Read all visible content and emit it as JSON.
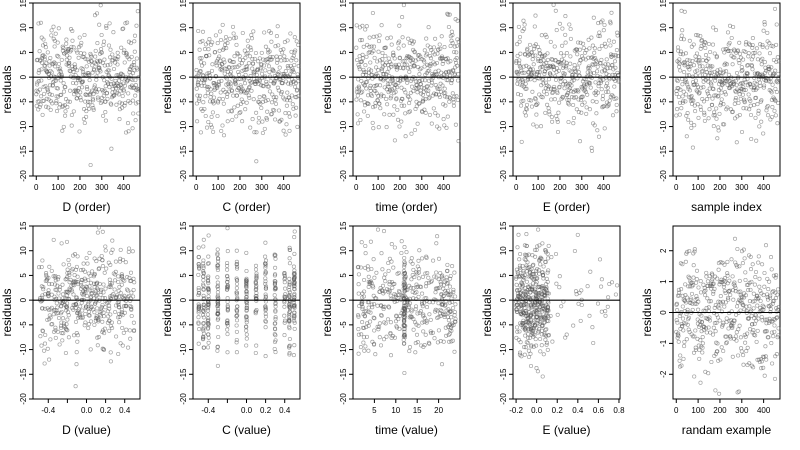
{
  "figure": {
    "type": "scatter-grid",
    "rows": 2,
    "cols": 5,
    "point_style": "open circle, translucent grey",
    "reference_line": 0,
    "colors": {
      "points": "#555555",
      "axes": "#000000",
      "background": "#ffffff"
    }
  },
  "chart_data": [
    {
      "type": "scatter",
      "xlabel": "D (order)",
      "ylabel": "residuals",
      "xlim": [
        -15,
        475
      ],
      "ylim": [
        -20,
        15
      ],
      "xticks": [
        0,
        100,
        200,
        300,
        400
      ],
      "yticks": [
        -20,
        -15,
        -10,
        -5,
        0,
        5,
        10,
        15
      ],
      "x_kind": "index",
      "n": 470,
      "y_sd": 5,
      "hline": 0,
      "points_note": "≈470 residuals, mean ≈ 0, spread mostly within ±12"
    },
    {
      "type": "scatter",
      "xlabel": "C (order)",
      "ylabel": "residuals",
      "xlim": [
        -15,
        475
      ],
      "ylim": [
        -20,
        15
      ],
      "xticks": [
        0,
        100,
        200,
        300,
        400
      ],
      "yticks": [
        -20,
        -15,
        -10,
        -5,
        0,
        5,
        10,
        15
      ],
      "x_kind": "index",
      "n": 470,
      "y_sd": 5,
      "hline": 0,
      "points_note": "≈470 residuals, mean ≈ 0, spread mostly within ±12"
    },
    {
      "type": "scatter",
      "xlabel": "time (order)",
      "ylabel": "residuals",
      "xlim": [
        -15,
        475
      ],
      "ylim": [
        -20,
        15
      ],
      "xticks": [
        0,
        100,
        200,
        300,
        400
      ],
      "yticks": [
        -20,
        -15,
        -10,
        -5,
        0,
        5,
        10,
        15
      ],
      "x_kind": "index",
      "n": 470,
      "y_sd": 5,
      "hline": 0,
      "points_note": "≈470 residuals, mean ≈ 0, spread mostly within ±12"
    },
    {
      "type": "scatter",
      "xlabel": "E (order)",
      "ylabel": "residuals",
      "xlim": [
        -15,
        475
      ],
      "ylim": [
        -20,
        15
      ],
      "xticks": [
        0,
        100,
        200,
        300,
        400
      ],
      "yticks": [
        -20,
        -15,
        -10,
        -5,
        0,
        5,
        10,
        15
      ],
      "x_kind": "index",
      "n": 470,
      "y_sd": 5,
      "hline": 0,
      "points_note": "≈470 residuals, mean ≈ 0, spread mostly within ±12"
    },
    {
      "type": "scatter",
      "xlabel": "sample index",
      "ylabel": "residuals",
      "xlim": [
        -15,
        475
      ],
      "ylim": [
        -20,
        15
      ],
      "xticks": [
        0,
        100,
        200,
        300,
        400
      ],
      "yticks": [
        -20,
        -15,
        -10,
        -5,
        0,
        5,
        10,
        15
      ],
      "x_kind": "index",
      "n": 470,
      "y_sd": 5,
      "hline": 0,
      "points_note": "≈470 residuals, mean ≈ 0, spread mostly within ±12"
    },
    {
      "type": "scatter",
      "xlabel": "D (value)",
      "ylabel": "residuals",
      "xlim": [
        -0.56,
        0.56
      ],
      "ylim": [
        -20,
        15
      ],
      "xticks": [
        -0.4,
        -0.2,
        0.0,
        0.2,
        0.4
      ],
      "xtick_labels": [
        "-0.4",
        "",
        "0.0",
        "0.2",
        "0.4"
      ],
      "yticks": [
        -20,
        -15,
        -10,
        -5,
        0,
        5,
        10,
        15
      ],
      "x_kind": "uniform",
      "x_range": [
        -0.5,
        0.5
      ],
      "n": 470,
      "y_sd": 5,
      "hline": 0,
      "points_note": "x spread over -0.5..0.5 with denser columns near 0.0–0.2"
    },
    {
      "type": "scatter",
      "xlabel": "C (value)",
      "ylabel": "residuals",
      "xlim": [
        -0.56,
        0.56
      ],
      "ylim": [
        -20,
        15
      ],
      "xticks": [
        -0.4,
        -0.2,
        0.0,
        0.2,
        0.4
      ],
      "xtick_labels": [
        "-0.4",
        "",
        "0.0",
        "0.2",
        "0.4"
      ],
      "yticks": [
        -20,
        -15,
        -10,
        -5,
        0,
        5,
        10,
        15
      ],
      "x_kind": "discrete",
      "x_levels": [
        -0.5,
        -0.45,
        -0.4,
        -0.3,
        -0.2,
        -0.1,
        0.0,
        0.1,
        0.2,
        0.3,
        0.4,
        0.45,
        0.5
      ],
      "n": 470,
      "y_sd": 5,
      "hline": 0,
      "points_note": "points stacked in vertical columns at discrete C levels"
    },
    {
      "type": "scatter",
      "xlabel": "time (value)",
      "ylabel": "residuals",
      "xlim": [
        0,
        25
      ],
      "ylim": [
        -20,
        15
      ],
      "xticks": [
        5,
        10,
        15,
        20
      ],
      "yticks": [
        -20,
        -15,
        -10,
        -5,
        0,
        5,
        10,
        15
      ],
      "x_kind": "uniform",
      "x_range": [
        1,
        24
      ],
      "x_cluster": 12,
      "n": 470,
      "y_sd": 5,
      "hline": 0,
      "points_note": "x spread 1..24, dense column near time = 12"
    },
    {
      "type": "scatter",
      "xlabel": "E (value)",
      "ylabel": "residuals",
      "xlim": [
        -0.23,
        0.81
      ],
      "ylim": [
        -20,
        15
      ],
      "xticks": [
        -0.2,
        0.0,
        0.2,
        0.4,
        0.6,
        0.8
      ],
      "xtick_labels": [
        "-0.2",
        "0.0",
        "0.2",
        "0.4",
        "0.6",
        "0.8"
      ],
      "yticks": [
        -20,
        -15,
        -10,
        -5,
        0,
        5,
        10,
        15
      ],
      "x_kind": "skewed",
      "x_range": [
        -0.2,
        0.8
      ],
      "n": 470,
      "y_sd": 5,
      "hline": 0,
      "points_note": "most points between -0.2 and 0.1, sparse tail to 0.8"
    },
    {
      "type": "scatter",
      "xlabel": "randam example",
      "ylabel": "residuals",
      "xlim": [
        -15,
        475
      ],
      "ylim": [
        -2.8,
        2.8
      ],
      "xticks": [
        0,
        100,
        200,
        300,
        400
      ],
      "yticks": [
        -2,
        -1,
        0,
        1,
        2
      ],
      "x_kind": "index",
      "n": 470,
      "y_sd": 1,
      "hline": 0,
      "points_note": "≈470 standard-normal values, mean ≈ 0"
    }
  ]
}
